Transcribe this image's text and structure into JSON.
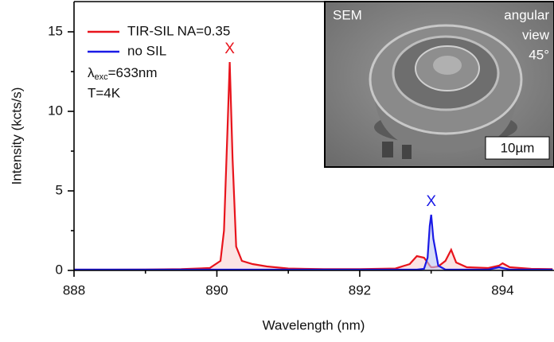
{
  "chart_data": {
    "type": "line",
    "x_label": "Wavelength (nm)",
    "y_label": "Intensity (kcts/s)",
    "x": [
      888.0,
      888.5,
      889.0,
      889.5,
      889.9,
      890.05,
      890.1,
      890.15,
      890.18,
      890.22,
      890.27,
      890.35,
      890.5,
      890.7,
      891.0,
      891.5,
      892.0,
      892.5,
      892.7,
      892.8,
      892.9,
      892.95,
      892.98,
      893.0,
      893.03,
      893.1,
      893.2,
      893.28,
      893.35,
      893.5,
      893.8,
      893.95,
      894.0,
      894.1,
      894.4,
      894.7
    ],
    "series": [
      {
        "name": "TIR-SIL NA=0.35",
        "color": "#e8141c",
        "fill": "#f9d2d2",
        "values": [
          0.05,
          0.05,
          0.06,
          0.08,
          0.15,
          0.6,
          2.5,
          9,
          13.1,
          7,
          1.5,
          0.6,
          0.4,
          0.25,
          0.12,
          0.08,
          0.08,
          0.12,
          0.4,
          0.9,
          0.8,
          0.5,
          0.3,
          0.2,
          0.2,
          0.25,
          0.6,
          1.3,
          0.5,
          0.2,
          0.15,
          0.3,
          0.45,
          0.2,
          0.1,
          0.08
        ]
      },
      {
        "name": "no SIL",
        "color": "#1a1ae6",
        "fill": "#bcc6f2",
        "values": [
          0.05,
          0.05,
          0.05,
          0.05,
          0.05,
          0.05,
          0.05,
          0.05,
          0.05,
          0.05,
          0.05,
          0.05,
          0.05,
          0.05,
          0.05,
          0.05,
          0.05,
          0.05,
          0.05,
          0.05,
          0.1,
          0.8,
          2.8,
          3.5,
          2.0,
          0.3,
          0.05,
          0.05,
          0.05,
          0.05,
          0.05,
          0.2,
          0.15,
          0.05,
          0.05,
          0.05
        ]
      }
    ],
    "peak_labels": [
      "X",
      "X"
    ],
    "excitation_label": {
      "symbol": "λ",
      "subscript": "exc",
      "value": "=633nm"
    },
    "temperature_label": "T=4K",
    "xlim": [
      888,
      894.72
    ],
    "ylim": [
      0,
      16.9
    ],
    "xticks": [
      888,
      890,
      892,
      894
    ],
    "xminorticks": [
      889,
      891,
      893
    ],
    "yticks": [
      0,
      5,
      10,
      15
    ],
    "yminorticks": [
      2.5,
      7.5,
      12.5
    ],
    "inset": {
      "label": "SEM",
      "view_lines": [
        "angular",
        "view",
        "45°"
      ],
      "scale_bar": "10µm"
    }
  }
}
